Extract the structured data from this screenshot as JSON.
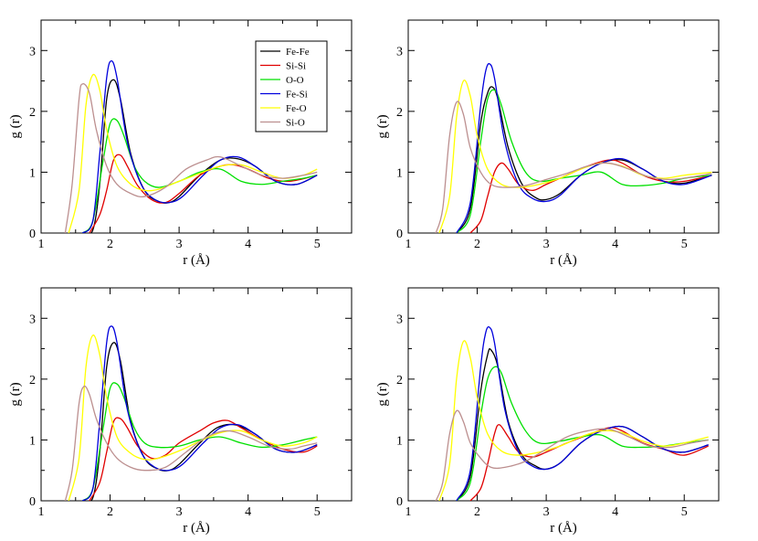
{
  "legend": {
    "entries": [
      "Fe-Fe",
      "Si-Si",
      "O-O",
      "Fe-Si",
      "Fe-O",
      "Si-O"
    ],
    "colors": [
      "#000000",
      "#e00000",
      "#00e000",
      "#0000dd",
      "#ffff00",
      "#bc8f8f"
    ]
  },
  "chart_data": [
    {
      "type": "line",
      "xlabel": "r (Å)",
      "ylabel": "g (r)",
      "xlim": [
        1,
        5.5
      ],
      "ylim": [
        0,
        3.5
      ],
      "xticks": [
        "1",
        "2",
        "3",
        "4",
        "5"
      ],
      "yticks": [
        "0",
        "1",
        "2",
        "3"
      ],
      "legend_position": "top-right",
      "series": [
        {
          "name": "Fe-Fe",
          "x": [
            1.6,
            1.75,
            1.85,
            1.95,
            2.05,
            2.15,
            2.3,
            2.5,
            2.7,
            2.85,
            3.0,
            3.3,
            3.6,
            3.85,
            4.1,
            4.4,
            4.7,
            5.0
          ],
          "y": [
            0,
            0.05,
            0.8,
            2.2,
            2.52,
            2.2,
            1.3,
            0.7,
            0.52,
            0.5,
            0.6,
            0.95,
            1.2,
            1.22,
            1.1,
            0.85,
            0.8,
            0.95
          ]
        },
        {
          "name": "Si-Si",
          "x": [
            1.7,
            1.85,
            1.95,
            2.05,
            2.15,
            2.25,
            2.4,
            2.6,
            2.8,
            3.0,
            3.3,
            3.6,
            3.8,
            4.0,
            4.3,
            4.6,
            5.0
          ],
          "y": [
            0,
            0.3,
            0.7,
            1.2,
            1.28,
            1.1,
            0.78,
            0.55,
            0.5,
            0.65,
            0.95,
            1.1,
            1.12,
            1.05,
            0.9,
            0.85,
            0.95
          ]
        },
        {
          "name": "O-O",
          "x": [
            1.6,
            1.75,
            1.9,
            2.0,
            2.1,
            2.2,
            2.35,
            2.5,
            2.7,
            3.0,
            3.3,
            3.6,
            3.9,
            4.2,
            4.5,
            4.8,
            5.0
          ],
          "y": [
            0,
            0.2,
            1.2,
            1.8,
            1.85,
            1.6,
            1.1,
            0.85,
            0.75,
            0.85,
            1.0,
            1.05,
            0.85,
            0.8,
            0.85,
            0.9,
            0.95
          ]
        },
        {
          "name": "Fe-Si",
          "x": [
            1.6,
            1.75,
            1.85,
            1.95,
            2.02,
            2.1,
            2.25,
            2.45,
            2.65,
            2.85,
            3.05,
            3.35,
            3.6,
            3.85,
            4.1,
            4.4,
            4.7,
            5.0
          ],
          "y": [
            0,
            0.2,
            1.3,
            2.55,
            2.83,
            2.55,
            1.5,
            0.8,
            0.55,
            0.5,
            0.6,
            0.95,
            1.2,
            1.25,
            1.1,
            0.85,
            0.8,
            0.95
          ]
        },
        {
          "name": "Fe-O",
          "x": [
            1.4,
            1.55,
            1.65,
            1.75,
            1.85,
            1.95,
            2.1,
            2.3,
            2.5,
            2.7,
            3.0,
            3.3,
            3.6,
            3.9,
            4.2,
            4.5,
            4.8,
            5.0
          ],
          "y": [
            0,
            0.7,
            2.1,
            2.6,
            2.35,
            1.7,
            1.1,
            0.8,
            0.7,
            0.72,
            0.85,
            0.98,
            1.1,
            1.12,
            1.0,
            0.9,
            0.95,
            1.05
          ]
        },
        {
          "name": "Si-O",
          "x": [
            1.35,
            1.45,
            1.55,
            1.6,
            1.7,
            1.8,
            1.95,
            2.1,
            2.3,
            2.5,
            2.8,
            3.1,
            3.4,
            3.6,
            3.9,
            4.2,
            4.5,
            4.8,
            5.0
          ],
          "y": [
            0,
            0.8,
            2.2,
            2.45,
            2.3,
            1.7,
            1.1,
            0.8,
            0.65,
            0.6,
            0.75,
            1.05,
            1.2,
            1.25,
            1.1,
            0.95,
            0.9,
            0.95,
            1.0
          ]
        }
      ]
    },
    {
      "type": "line",
      "xlabel": "r (Å)",
      "ylabel": "g (r)",
      "xlim": [
        1,
        5.5
      ],
      "ylim": [
        0,
        3.5
      ],
      "xticks": [
        "1",
        "2",
        "3",
        "4",
        "5"
      ],
      "yticks": [
        "0",
        "1",
        "2",
        "3"
      ],
      "series": [
        {
          "name": "Fe-Fe",
          "x": [
            1.7,
            1.9,
            2.05,
            2.15,
            2.22,
            2.3,
            2.45,
            2.65,
            2.85,
            3.0,
            3.2,
            3.5,
            3.8,
            4.1,
            4.4,
            4.7,
            5.0,
            5.4
          ],
          "y": [
            0,
            0.4,
            1.8,
            2.3,
            2.4,
            2.2,
            1.4,
            0.8,
            0.58,
            0.55,
            0.65,
            0.95,
            1.15,
            1.2,
            1.05,
            0.85,
            0.82,
            0.95
          ]
        },
        {
          "name": "Si-Si",
          "x": [
            1.9,
            2.05,
            2.15,
            2.25,
            2.35,
            2.45,
            2.6,
            2.8,
            3.0,
            3.3,
            3.6,
            3.9,
            4.1,
            4.4,
            4.7,
            5.0,
            5.4
          ],
          "y": [
            0,
            0.2,
            0.6,
            1.0,
            1.15,
            1.05,
            0.8,
            0.7,
            0.8,
            0.95,
            1.1,
            1.2,
            1.15,
            0.95,
            0.85,
            0.85,
            0.95
          ]
        },
        {
          "name": "O-O",
          "x": [
            1.7,
            1.9,
            2.05,
            2.15,
            2.25,
            2.35,
            2.5,
            2.7,
            2.9,
            3.2,
            3.5,
            3.8,
            4.1,
            4.4,
            4.7,
            5.0,
            5.4
          ],
          "y": [
            0,
            0.3,
            1.5,
            2.2,
            2.35,
            2.1,
            1.5,
            1.0,
            0.85,
            0.9,
            0.95,
            1.0,
            0.8,
            0.78,
            0.82,
            0.9,
            0.95
          ]
        },
        {
          "name": "Fe-Si",
          "x": [
            1.7,
            1.9,
            2.05,
            2.12,
            2.18,
            2.25,
            2.4,
            2.6,
            2.8,
            3.0,
            3.2,
            3.5,
            3.8,
            4.1,
            4.4,
            4.7,
            5.0,
            5.4
          ],
          "y": [
            0,
            0.5,
            2.1,
            2.65,
            2.78,
            2.55,
            1.5,
            0.8,
            0.57,
            0.52,
            0.62,
            0.95,
            1.15,
            1.22,
            1.05,
            0.85,
            0.8,
            0.95
          ]
        },
        {
          "name": "Fe-O",
          "x": [
            1.45,
            1.6,
            1.7,
            1.8,
            1.9,
            2.0,
            2.15,
            2.35,
            2.6,
            2.9,
            3.2,
            3.5,
            3.8,
            4.1,
            4.4,
            4.7,
            5.0,
            5.4
          ],
          "y": [
            0,
            0.6,
            1.9,
            2.5,
            2.25,
            1.6,
            1.05,
            0.8,
            0.75,
            0.8,
            0.9,
            1.05,
            1.15,
            1.1,
            0.95,
            0.9,
            0.95,
            1.0
          ]
        },
        {
          "name": "Si-O",
          "x": [
            1.4,
            1.5,
            1.6,
            1.7,
            1.8,
            1.9,
            2.05,
            2.2,
            2.4,
            2.7,
            3.0,
            3.3,
            3.6,
            3.9,
            4.2,
            4.5,
            4.8,
            5.1,
            5.4
          ],
          "y": [
            0,
            0.4,
            1.6,
            2.15,
            1.95,
            1.4,
            1.0,
            0.8,
            0.75,
            0.78,
            0.88,
            0.98,
            1.1,
            1.15,
            1.05,
            0.92,
            0.88,
            0.92,
            0.98
          ]
        }
      ]
    },
    {
      "type": "line",
      "xlabel": "r (Å)",
      "ylabel": "g (r)",
      "xlim": [
        1,
        5.5
      ],
      "ylim": [
        0,
        3.5
      ],
      "xticks": [
        "1",
        "2",
        "3",
        "4",
        "5"
      ],
      "yticks": [
        "0",
        "1",
        "2",
        "3"
      ],
      "series": [
        {
          "name": "Fe-Fe",
          "x": [
            1.6,
            1.75,
            1.85,
            1.95,
            2.05,
            2.15,
            2.3,
            2.5,
            2.7,
            2.85,
            3.0,
            3.3,
            3.55,
            3.8,
            4.1,
            4.4,
            4.7,
            5.0
          ],
          "y": [
            0,
            0.05,
            0.8,
            2.2,
            2.6,
            2.3,
            1.3,
            0.7,
            0.52,
            0.5,
            0.6,
            0.95,
            1.2,
            1.25,
            1.1,
            0.85,
            0.8,
            0.92
          ]
        },
        {
          "name": "Si-Si",
          "x": [
            1.7,
            1.85,
            1.95,
            2.05,
            2.15,
            2.25,
            2.4,
            2.6,
            2.8,
            3.0,
            3.3,
            3.5,
            3.7,
            3.9,
            4.2,
            4.5,
            4.8,
            5.0
          ],
          "y": [
            0,
            0.3,
            0.8,
            1.3,
            1.35,
            1.2,
            0.9,
            0.7,
            0.75,
            0.95,
            1.15,
            1.28,
            1.32,
            1.2,
            1.0,
            0.85,
            0.8,
            0.9
          ]
        },
        {
          "name": "O-O",
          "x": [
            1.6,
            1.75,
            1.9,
            2.0,
            2.1,
            2.2,
            2.35,
            2.5,
            2.7,
            3.0,
            3.3,
            3.6,
            3.9,
            4.2,
            4.5,
            4.8,
            5.0
          ],
          "y": [
            0,
            0.2,
            1.2,
            1.85,
            1.92,
            1.7,
            1.2,
            0.95,
            0.88,
            0.9,
            1.0,
            1.05,
            0.95,
            0.88,
            0.92,
            1.0,
            1.05
          ]
        },
        {
          "name": "Fe-Si",
          "x": [
            1.6,
            1.75,
            1.85,
            1.95,
            2.02,
            2.1,
            2.25,
            2.45,
            2.65,
            2.85,
            3.05,
            3.35,
            3.6,
            3.85,
            4.1,
            4.4,
            4.7,
            5.0
          ],
          "y": [
            0,
            0.2,
            1.3,
            2.6,
            2.87,
            2.6,
            1.5,
            0.8,
            0.55,
            0.5,
            0.6,
            0.95,
            1.2,
            1.25,
            1.1,
            0.85,
            0.8,
            0.92
          ]
        },
        {
          "name": "Fe-O",
          "x": [
            1.4,
            1.55,
            1.65,
            1.75,
            1.85,
            1.95,
            2.1,
            2.3,
            2.5,
            2.7,
            3.0,
            3.3,
            3.6,
            3.9,
            4.2,
            4.5,
            4.8,
            5.0
          ],
          "y": [
            0,
            0.7,
            2.2,
            2.72,
            2.4,
            1.7,
            1.05,
            0.78,
            0.68,
            0.7,
            0.82,
            0.98,
            1.12,
            1.15,
            1.0,
            0.9,
            0.95,
            1.05
          ]
        },
        {
          "name": "Si-O",
          "x": [
            1.35,
            1.45,
            1.55,
            1.62,
            1.7,
            1.8,
            1.95,
            2.1,
            2.3,
            2.5,
            2.8,
            3.1,
            3.4,
            3.7,
            4.0,
            4.3,
            4.6,
            4.8,
            5.0
          ],
          "y": [
            0,
            0.5,
            1.6,
            1.88,
            1.75,
            1.35,
            0.95,
            0.7,
            0.55,
            0.5,
            0.55,
            0.8,
            1.05,
            1.15,
            1.05,
            0.9,
            0.85,
            0.9,
            0.95
          ]
        }
      ]
    },
    {
      "type": "line",
      "xlabel": "r (Å)",
      "ylabel": "g (r)",
      "xlim": [
        1,
        5.5
      ],
      "ylim": [
        0,
        3.5
      ],
      "xticks": [
        "1",
        "2",
        "3",
        "4",
        "5"
      ],
      "yticks": [
        "0",
        "1",
        "2",
        "3"
      ],
      "series": [
        {
          "name": "Fe-Fe",
          "x": [
            1.7,
            1.9,
            2.05,
            2.15,
            2.2,
            2.3,
            2.45,
            2.65,
            2.85,
            3.0,
            3.2,
            3.5,
            3.8,
            4.1,
            4.4,
            4.7,
            5.0,
            5.35
          ],
          "y": [
            0,
            0.4,
            1.8,
            2.4,
            2.48,
            2.2,
            1.3,
            0.75,
            0.57,
            0.52,
            0.62,
            0.95,
            1.15,
            1.22,
            1.05,
            0.85,
            0.8,
            0.92
          ]
        },
        {
          "name": "Si-Si",
          "x": [
            1.9,
            2.05,
            2.15,
            2.25,
            2.32,
            2.45,
            2.6,
            2.8,
            3.0,
            3.3,
            3.6,
            3.9,
            4.1,
            4.4,
            4.7,
            5.0,
            5.35
          ],
          "y": [
            0,
            0.2,
            0.6,
            1.1,
            1.25,
            1.05,
            0.8,
            0.72,
            0.8,
            0.95,
            1.08,
            1.2,
            1.15,
            0.95,
            0.85,
            0.75,
            0.9
          ]
        },
        {
          "name": "O-O",
          "x": [
            1.7,
            1.9,
            2.05,
            2.15,
            2.25,
            2.35,
            2.5,
            2.7,
            2.9,
            3.2,
            3.5,
            3.8,
            4.1,
            4.4,
            4.7,
            5.0,
            5.35
          ],
          "y": [
            0,
            0.3,
            1.4,
            2.0,
            2.2,
            2.1,
            1.6,
            1.15,
            0.95,
            0.98,
            1.05,
            1.08,
            0.9,
            0.88,
            0.9,
            0.95,
            1.0
          ]
        },
        {
          "name": "Fe-Si",
          "x": [
            1.7,
            1.9,
            2.05,
            2.12,
            2.18,
            2.25,
            2.4,
            2.6,
            2.8,
            3.0,
            3.2,
            3.5,
            3.8,
            4.1,
            4.4,
            4.7,
            5.0,
            5.35
          ],
          "y": [
            0,
            0.5,
            2.2,
            2.75,
            2.85,
            2.6,
            1.5,
            0.8,
            0.57,
            0.52,
            0.62,
            0.95,
            1.15,
            1.22,
            1.05,
            0.85,
            0.8,
            0.92
          ]
        },
        {
          "name": "Fe-O",
          "x": [
            1.45,
            1.6,
            1.7,
            1.8,
            1.9,
            2.0,
            2.15,
            2.35,
            2.6,
            2.9,
            3.2,
            3.5,
            3.8,
            4.1,
            4.4,
            4.7,
            5.0,
            5.35
          ],
          "y": [
            0,
            0.6,
            2.0,
            2.62,
            2.35,
            1.7,
            1.1,
            0.82,
            0.75,
            0.8,
            0.9,
            1.05,
            1.15,
            1.12,
            0.98,
            0.9,
            0.95,
            1.05
          ]
        },
        {
          "name": "Si-O",
          "x": [
            1.4,
            1.5,
            1.6,
            1.7,
            1.8,
            1.9,
            2.05,
            2.2,
            2.4,
            2.7,
            3.0,
            3.3,
            3.6,
            3.9,
            4.2,
            4.5,
            4.8,
            5.1,
            5.35
          ],
          "y": [
            0,
            0.3,
            1.1,
            1.48,
            1.3,
            0.95,
            0.7,
            0.55,
            0.55,
            0.65,
            0.85,
            1.05,
            1.15,
            1.18,
            1.05,
            0.9,
            0.88,
            0.95,
            1.0
          ]
        }
      ]
    }
  ]
}
